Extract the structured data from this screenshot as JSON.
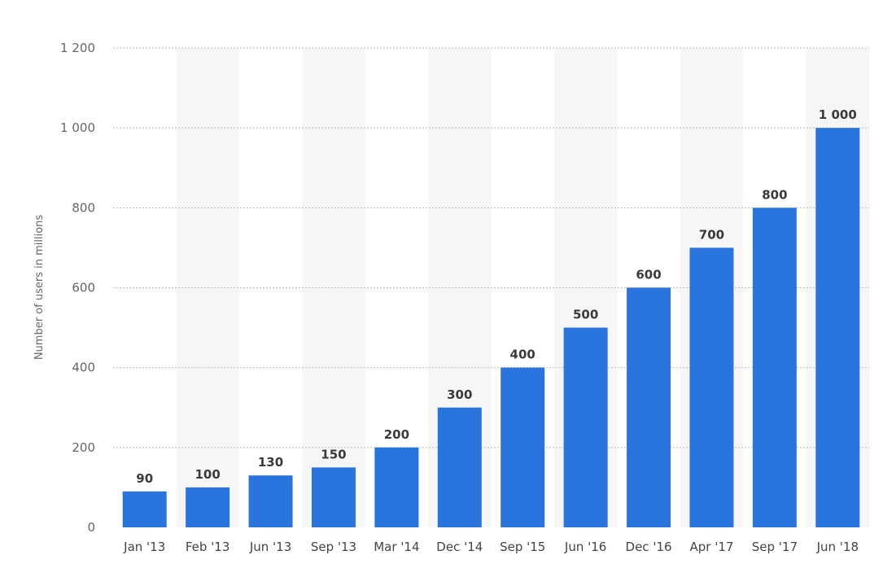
{
  "chart_data": {
    "type": "bar",
    "categories": [
      "Jan '13",
      "Feb '13",
      "Jun '13",
      "Sep '13",
      "Mar '14",
      "Dec '14",
      "Sep '15",
      "Jun '16",
      "Dec '16",
      "Apr '17",
      "Sep '17",
      "Jun '18"
    ],
    "values": [
      90,
      100,
      130,
      150,
      200,
      300,
      400,
      500,
      600,
      700,
      800,
      1000
    ],
    "value_labels": [
      "90",
      "100",
      "130",
      "150",
      "200",
      "300",
      "400",
      "500",
      "600",
      "700",
      "800",
      "1 000"
    ],
    "title": "",
    "xlabel": "",
    "ylabel": "Number of users in millions",
    "ylim": [
      0,
      1200
    ],
    "yticks": [
      0,
      200,
      400,
      600,
      800,
      1000,
      1200
    ],
    "ytick_labels": [
      "0",
      "200",
      "400",
      "600",
      "800",
      "1 000",
      "1 200"
    ],
    "grid": true,
    "legend": "none",
    "bar_color": "#2a75dd",
    "band_color": "#f6f6f6",
    "grid_color": "#bdbdbd"
  }
}
